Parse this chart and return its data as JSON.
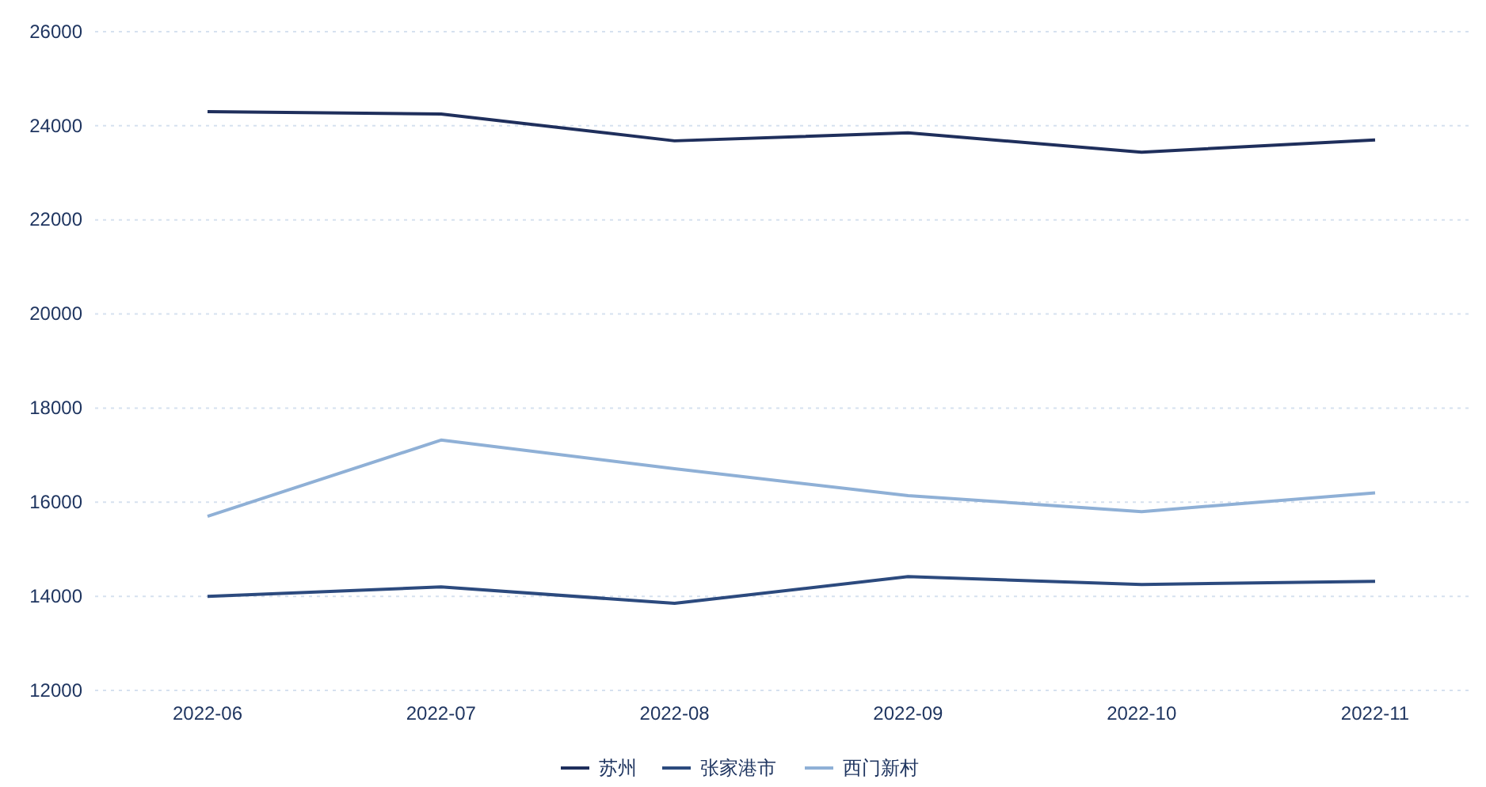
{
  "chart_data": {
    "type": "line",
    "categories": [
      "2022-06",
      "2022-07",
      "2022-08",
      "2022-09",
      "2022-10",
      "2022-11"
    ],
    "series": [
      {
        "name": "苏州",
        "color": "#1f2f5c",
        "values": [
          24300,
          24250,
          23680,
          23850,
          23440,
          23700
        ]
      },
      {
        "name": "张家港市",
        "color": "#2c4a7e",
        "values": [
          14000,
          14200,
          13850,
          14420,
          14250,
          14320
        ]
      },
      {
        "name": "西门新村",
        "color": "#8fb0d6",
        "values": [
          15700,
          17320,
          16710,
          16140,
          15800,
          16200
        ]
      }
    ],
    "ylim": [
      12000,
      26000
    ],
    "yticks": [
      12000,
      14000,
      16000,
      18000,
      20000,
      22000,
      24000,
      26000
    ],
    "grid": "y",
    "legend": "bottom",
    "marker": "none",
    "line_style": "solid"
  }
}
